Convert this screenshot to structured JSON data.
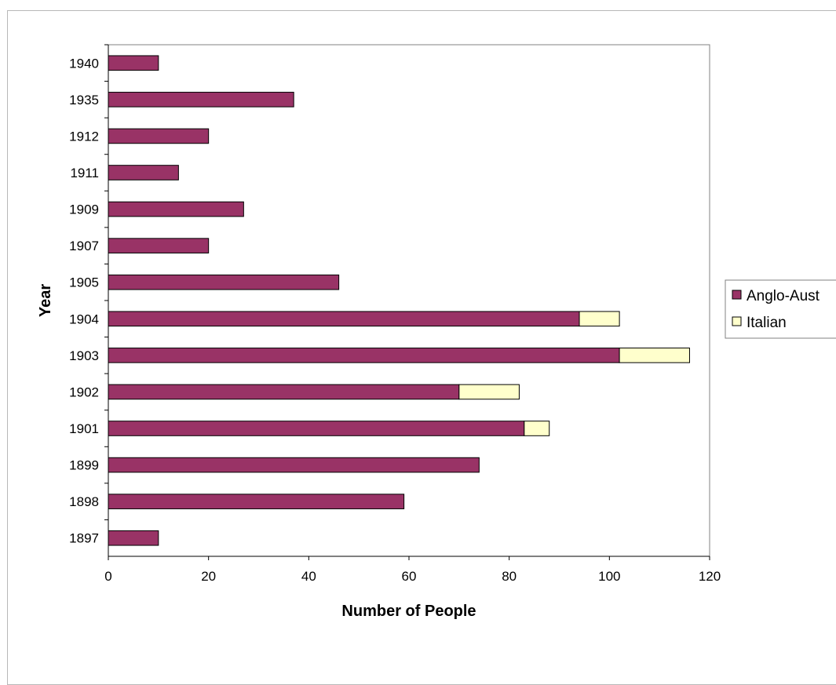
{
  "chart_data": {
    "type": "bar",
    "orientation": "horizontal",
    "stacked": true,
    "categories": [
      "1940",
      "1935",
      "1912",
      "1911",
      "1909",
      "1907",
      "1905",
      "1904",
      "1903",
      "1902",
      "1901",
      "1899",
      "1898",
      "1897"
    ],
    "series": [
      {
        "name": "Anglo-Aust",
        "color": "#993366",
        "values": [
          10,
          37,
          20,
          14,
          27,
          20,
          46,
          94,
          102,
          70,
          83,
          74,
          59,
          10
        ]
      },
      {
        "name": "Italian",
        "color": "#FFFFCC",
        "values": [
          0,
          0,
          0,
          0,
          0,
          0,
          0,
          8,
          14,
          12,
          5,
          0,
          0,
          0
        ]
      }
    ],
    "xlabel": "Number of People",
    "ylabel": "Year",
    "xlim": [
      0,
      120
    ],
    "xticks": [
      "0",
      "20",
      "40",
      "60",
      "80",
      "100",
      "120"
    ],
    "grid": false,
    "legend_position": "right"
  }
}
